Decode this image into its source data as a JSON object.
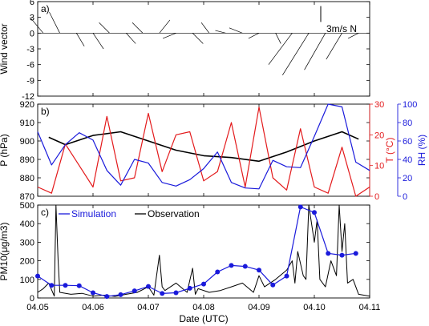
{
  "chart_data": [
    {
      "type": "line",
      "panel_label": "a)",
      "ylabel": "Wind vector",
      "ylim": [
        -12,
        6
      ],
      "yticks": [
        "6",
        "3",
        "0",
        "-3",
        "-6",
        "-9",
        "-12"
      ],
      "legend_text": "3m/s N",
      "wind": {
        "t": [
          4.051,
          4.054,
          4.057,
          4.06,
          4.063,
          4.066,
          4.069,
          4.072,
          4.075,
          4.078,
          4.081,
          4.084,
          4.087,
          4.09,
          4.093,
          4.096,
          4.099,
          4.102,
          4.105,
          4.108
        ],
        "u": [
          -2.5,
          -2,
          1.5,
          2,
          -2,
          1.8,
          -2,
          2,
          -2.5,
          2,
          -1.5,
          -2,
          -2.5,
          -2,
          1,
          -4.5,
          -5,
          -4,
          -3,
          -2
        ],
        "v": [
          3,
          4,
          -2.5,
          -3,
          2,
          -2,
          2,
          2.5,
          -1,
          -2,
          2,
          0.5,
          1,
          -1,
          -2,
          -6,
          -8,
          -7,
          -5,
          -1
        ]
      }
    },
    {
      "type": "line",
      "panel_label": "b)",
      "ylabel": "P (hPa)",
      "ylim": [
        870,
        920
      ],
      "yticks": [
        "920",
        "910",
        "900",
        "890",
        "880",
        "870"
      ],
      "ylabel_right1": "T (°C)",
      "ylim_right1": [
        0,
        30
      ],
      "yticks_right1": [
        "30",
        "20",
        "10",
        "0"
      ],
      "ylabel_right2": "RH (%)",
      "ylim_right2": [
        0,
        100
      ],
      "yticks_right2": [
        "100",
        "80",
        "60",
        "40",
        "20",
        "0"
      ],
      "series": [
        {
          "color": "#000000",
          "x": [
            4.052,
            4.055,
            4.06,
            4.065,
            4.07,
            4.075,
            4.08,
            4.085,
            4.09,
            4.095,
            4.1,
            4.105,
            4.108
          ],
          "y": [
            902,
            898,
            903,
            905,
            900,
            895,
            892,
            891,
            889,
            894,
            900,
            905,
            901
          ]
        },
        {
          "color": "#e31a1c",
          "x": [
            4.05,
            4.0525,
            4.055,
            4.0575,
            4.06,
            4.0625,
            4.065,
            4.0675,
            4.07,
            4.0725,
            4.075,
            4.0775,
            4.08,
            4.0825,
            4.085,
            4.0875,
            4.09,
            4.0925,
            4.095,
            4.0975,
            4.1,
            4.1025,
            4.105,
            4.1075,
            4.11
          ],
          "y": [
            3,
            1,
            17,
            10,
            3,
            26,
            5,
            6,
            27,
            8,
            20,
            21,
            5,
            8,
            24,
            3,
            29,
            6,
            2,
            22,
            3,
            1,
            16,
            0,
            3
          ]
        },
        {
          "color": "#1a1adb",
          "x": [
            4.05,
            4.0525,
            4.055,
            4.0575,
            4.06,
            4.0625,
            4.065,
            4.0675,
            4.07,
            4.0725,
            4.075,
            4.0775,
            4.08,
            4.0825,
            4.085,
            4.0875,
            4.09,
            4.0925,
            4.095,
            4.0975,
            4.1,
            4.1025,
            4.105,
            4.1075,
            4.11
          ],
          "y": [
            70,
            34,
            56,
            69,
            61,
            28,
            12,
            40,
            36,
            15,
            11,
            18,
            30,
            48,
            15,
            9,
            8,
            39,
            32,
            31,
            65,
            100,
            97,
            37,
            28
          ]
        }
      ]
    },
    {
      "type": "line",
      "panel_label": "c)",
      "ylabel": "PM10(μg/m3)",
      "ylim": [
        0,
        500
      ],
      "yticks": [
        "500",
        "400",
        "300",
        "200",
        "100",
        "0"
      ],
      "xlabel": "Date (UTC)",
      "xlim": [
        4.05,
        4.11
      ],
      "xticks": [
        "04.05",
        "04.06",
        "04.07",
        "04.08",
        "04.09",
        "04.10",
        "04.11"
      ],
      "legend": [
        "Simulation",
        "Observation"
      ],
      "series": [
        {
          "name": "Simulation",
          "color": "#1a1adb",
          "x": [
            4.05,
            4.0525,
            4.055,
            4.0575,
            4.06,
            4.0625,
            4.065,
            4.0675,
            4.07,
            4.0725,
            4.075,
            4.0775,
            4.08,
            4.0825,
            4.085,
            4.0875,
            4.09,
            4.0925,
            4.095,
            4.0975,
            4.1,
            4.1025,
            4.105,
            4.1075
          ],
          "y": [
            118,
            68,
            68,
            66,
            28,
            8,
            18,
            38,
            62,
            24,
            28,
            52,
            75,
            140,
            175,
            170,
            150,
            70,
            118,
            490,
            460,
            240,
            230,
            240
          ]
        },
        {
          "name": "Observation",
          "color": "#000000",
          "x": [
            4.05,
            4.051,
            4.052,
            4.053,
            4.0533,
            4.0537,
            4.054,
            4.056,
            4.058,
            4.06,
            4.062,
            4.064,
            4.066,
            4.068,
            4.07,
            4.071,
            4.072,
            4.0725,
            4.073,
            4.075,
            4.077,
            4.078,
            4.0785,
            4.079,
            4.081,
            4.083,
            4.085,
            4.087,
            4.089,
            4.09,
            4.091,
            4.093,
            4.095,
            4.096,
            4.0965,
            4.097,
            4.098,
            4.0985,
            4.099,
            4.1,
            4.1005,
            4.101,
            4.102,
            4.103,
            4.104,
            4.1045,
            4.105,
            4.1055,
            4.106,
            4.107,
            4.108,
            4.11
          ],
          "y": [
            30,
            50,
            80,
            10,
            500,
            200,
            30,
            20,
            25,
            10,
            15,
            8,
            20,
            30,
            60,
            15,
            230,
            60,
            40,
            80,
            30,
            160,
            20,
            50,
            30,
            40,
            60,
            80,
            30,
            120,
            60,
            100,
            150,
            200,
            80,
            250,
            120,
            100,
            500,
            300,
            420,
            100,
            60,
            200,
            120,
            500,
            250,
            400,
            80,
            100,
            20,
            10
          ]
        }
      ]
    }
  ]
}
